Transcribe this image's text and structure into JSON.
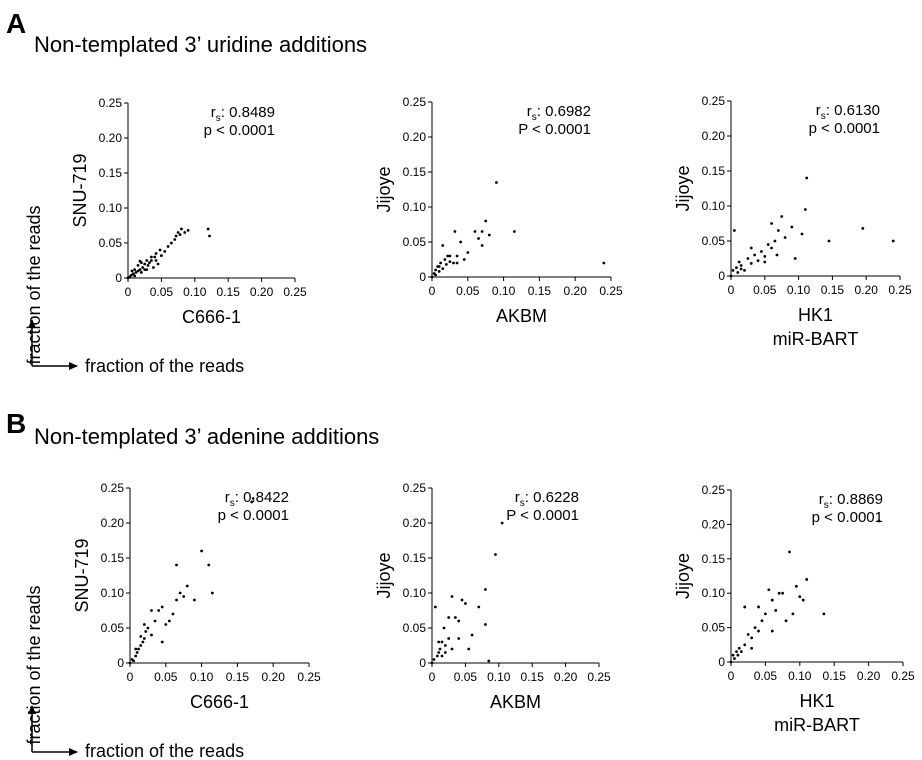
{
  "panels": [
    {
      "letter": "A",
      "title": "Non-templated 3’ uridine additions",
      "side_label": "fraction of the reads",
      "bottom_label": "fraction of the reads"
    },
    {
      "letter": "B",
      "title": "Non-templated 3’ adenine additions",
      "side_label": "fraction of the reads",
      "bottom_label": "fraction of the reads"
    }
  ],
  "chart_data": [
    {
      "type": "scatter",
      "panel": "A",
      "xlabel": "C666-1",
      "xlabel2": "",
      "ylabel": "SNU-719",
      "xlim": [
        0,
        0.25
      ],
      "ylim": [
        0,
        0.25
      ],
      "xticks": [
        "0",
        "0.05",
        "0.10",
        "0.15",
        "0.20",
        "0.25"
      ],
      "yticks": [
        "0",
        "0.05",
        "0.10",
        "0.15",
        "0.20",
        "0.25"
      ],
      "grid": false,
      "marker_color": "#000000",
      "stats": {
        "rs_prefix": "r",
        "rs_sub": "s",
        "rs_value": ": 0.8489",
        "p_text": "p < 0.0001"
      },
      "points": [
        [
          0,
          0
        ],
        [
          0.003,
          0.002
        ],
        [
          0.005,
          0.004
        ],
        [
          0.008,
          0.006
        ],
        [
          0.01,
          0.003
        ],
        [
          0.012,
          0.008
        ],
        [
          0.015,
          0.01
        ],
        [
          0.018,
          0.012
        ],
        [
          0.02,
          0.008
        ],
        [
          0.022,
          0.015
        ],
        [
          0.025,
          0.02
        ],
        [
          0.028,
          0.012
        ],
        [
          0.03,
          0.018
        ],
        [
          0.032,
          0.022
        ],
        [
          0.035,
          0.025
        ],
        [
          0.038,
          0.015
        ],
        [
          0.04,
          0.03
        ],
        [
          0.042,
          0.035
        ],
        [
          0.045,
          0.02
        ],
        [
          0.048,
          0.04
        ],
        [
          0.05,
          0.032
        ],
        [
          0.055,
          0.038
        ],
        [
          0.06,
          0.045
        ],
        [
          0.065,
          0.05
        ],
        [
          0.07,
          0.055
        ],
        [
          0.072,
          0.06
        ],
        [
          0.075,
          0.065
        ],
        [
          0.078,
          0.062
        ],
        [
          0.08,
          0.07
        ],
        [
          0.085,
          0.065
        ],
        [
          0.09,
          0.068
        ],
        [
          0.12,
          0.07
        ],
        [
          0.122,
          0.06
        ],
        [
          0.015,
          0.018
        ],
        [
          0.025,
          0.012
        ],
        [
          0.018,
          0.024
        ],
        [
          0.035,
          0.03
        ],
        [
          0.042,
          0.025
        ],
        [
          0.006,
          0.01
        ],
        [
          0.01,
          0.012
        ],
        [
          0.02,
          0.022
        ],
        [
          0.028,
          0.025
        ]
      ]
    },
    {
      "type": "scatter",
      "panel": "A",
      "xlabel": "AKBM",
      "xlabel2": "",
      "ylabel": "Jijoye",
      "xlim": [
        0,
        0.25
      ],
      "ylim": [
        0,
        0.25
      ],
      "xticks": [
        "0",
        "0.05",
        "0.10",
        "0.15",
        "0.20",
        "0.25"
      ],
      "yticks": [
        "0",
        "0.05",
        "0.10",
        "0.15",
        "0.20",
        "0.25"
      ],
      "grid": false,
      "marker_color": "#000000",
      "stats": {
        "rs_prefix": "r",
        "rs_sub": "s",
        "rs_value": ": 0.6982",
        "p_text": "P < 0.0001"
      },
      "points": [
        [
          0,
          0
        ],
        [
          0.003,
          0.005
        ],
        [
          0.005,
          0.01
        ],
        [
          0.008,
          0.015
        ],
        [
          0.01,
          0.008
        ],
        [
          0.012,
          0.02
        ],
        [
          0.015,
          0.012
        ],
        [
          0.018,
          0.025
        ],
        [
          0.02,
          0.018
        ],
        [
          0.022,
          0.03
        ],
        [
          0.025,
          0.022
        ],
        [
          0.03,
          0.02
        ],
        [
          0.032,
          0.065
        ],
        [
          0.035,
          0.03
        ],
        [
          0.04,
          0.05
        ],
        [
          0.045,
          0.025
        ],
        [
          0.05,
          0.035
        ],
        [
          0.06,
          0.065
        ],
        [
          0.065,
          0.055
        ],
        [
          0.07,
          0.045
        ],
        [
          0.075,
          0.08
        ],
        [
          0.08,
          0.06
        ],
        [
          0.09,
          0.135
        ],
        [
          0.115,
          0.065
        ],
        [
          0.24,
          0.02
        ],
        [
          0.015,
          0.045
        ],
        [
          0.025,
          0.03
        ],
        [
          0.005,
          0.003
        ],
        [
          0.01,
          0.015
        ],
        [
          0.07,
          0.065
        ],
        [
          0.035,
          0.02
        ]
      ]
    },
    {
      "type": "scatter",
      "panel": "A",
      "xlabel": "HK1",
      "xlabel2": "miR-BART",
      "ylabel": "Jijoye",
      "xlim": [
        0,
        0.25
      ],
      "ylim": [
        0,
        0.25
      ],
      "xticks": [
        "0",
        "0.05",
        "0.10",
        "0.15",
        "0.20",
        "0.25"
      ],
      "yticks": [
        "0",
        "0.05",
        "0.10",
        "0.15",
        "0.20",
        "0.25"
      ],
      "grid": false,
      "marker_color": "#000000",
      "stats": {
        "rs_prefix": "r",
        "rs_sub": "s",
        "rs_value": ": 0.6130",
        "p_text": "p < 0.0001"
      },
      "points": [
        [
          0,
          0
        ],
        [
          0.003,
          0.008
        ],
        [
          0.005,
          0.065
        ],
        [
          0.008,
          0.012
        ],
        [
          0.01,
          0.005
        ],
        [
          0.012,
          0.02
        ],
        [
          0.015,
          0.015
        ],
        [
          0.02,
          0.008
        ],
        [
          0.025,
          0.025
        ],
        [
          0.03,
          0.018
        ],
        [
          0.035,
          0.03
        ],
        [
          0.04,
          0.022
        ],
        [
          0.045,
          0.035
        ],
        [
          0.05,
          0.028
        ],
        [
          0.055,
          0.045
        ],
        [
          0.06,
          0.04
        ],
        [
          0.065,
          0.05
        ],
        [
          0.07,
          0.065
        ],
        [
          0.075,
          0.085
        ],
        [
          0.08,
          0.055
        ],
        [
          0.09,
          0.07
        ],
        [
          0.095,
          0.025
        ],
        [
          0.105,
          0.06
        ],
        [
          0.11,
          0.095
        ],
        [
          0.112,
          0.14
        ],
        [
          0.145,
          0.05
        ],
        [
          0.195,
          0.068
        ],
        [
          0.24,
          0.05
        ],
        [
          0.06,
          0.075
        ],
        [
          0.068,
          0.03
        ],
        [
          0.015,
          0.01
        ],
        [
          0.03,
          0.04
        ],
        [
          0.05,
          0.02
        ]
      ]
    },
    {
      "type": "scatter",
      "panel": "B",
      "xlabel": "C666-1",
      "xlabel2": "",
      "ylabel": "SNU-719",
      "xlim": [
        0,
        0.25
      ],
      "ylim": [
        0,
        0.25
      ],
      "xticks": [
        "0",
        "0.05",
        "0.10",
        "0.15",
        "0.20",
        "0.25"
      ],
      "yticks": [
        "0",
        "0.05",
        "0.10",
        "0.15",
        "0.20",
        "0.25"
      ],
      "grid": false,
      "marker_color": "#000000",
      "stats": {
        "rs_prefix": "r",
        "rs_sub": "s",
        "rs_value": ": 0.8422",
        "p_text": "p < 0.0001"
      },
      "points": [
        [
          0,
          0
        ],
        [
          0.003,
          0.005
        ],
        [
          0.005,
          0.003
        ],
        [
          0.008,
          0.01
        ],
        [
          0.01,
          0.015
        ],
        [
          0.012,
          0.02
        ],
        [
          0.015,
          0.025
        ],
        [
          0.018,
          0.03
        ],
        [
          0.02,
          0.035
        ],
        [
          0.022,
          0.045
        ],
        [
          0.025,
          0.05
        ],
        [
          0.03,
          0.04
        ],
        [
          0.035,
          0.06
        ],
        [
          0.04,
          0.075
        ],
        [
          0.045,
          0.08
        ],
        [
          0.05,
          0.055
        ],
        [
          0.055,
          0.06
        ],
        [
          0.06,
          0.07
        ],
        [
          0.065,
          0.09
        ],
        [
          0.07,
          0.1
        ],
        [
          0.075,
          0.095
        ],
        [
          0.08,
          0.11
        ],
        [
          0.09,
          0.09
        ],
        [
          0.1,
          0.16
        ],
        [
          0.11,
          0.14
        ],
        [
          0.115,
          0.1
        ],
        [
          0.17,
          0.23
        ],
        [
          0.172,
          0.235
        ],
        [
          0.065,
          0.14
        ],
        [
          0.03,
          0.075
        ],
        [
          0.045,
          0.03
        ],
        [
          0.02,
          0.055
        ],
        [
          0.015,
          0.038
        ],
        [
          0.008,
          0.02
        ]
      ]
    },
    {
      "type": "scatter",
      "panel": "B",
      "xlabel": "AKBM",
      "xlabel2": "",
      "ylabel": "Jijoye",
      "xlim": [
        0,
        0.25
      ],
      "ylim": [
        0,
        0.25
      ],
      "xticks": [
        "0",
        "0.05",
        "0.10",
        "0.15",
        "0.20",
        "0.25"
      ],
      "yticks": [
        "0",
        "0.05",
        "0.10",
        "0.15",
        "0.20",
        "0.25"
      ],
      "grid": false,
      "marker_color": "#000000",
      "stats": {
        "rs_prefix": "r",
        "rs_sub": "s",
        "rs_value": ": 0.6228",
        "p_text": "P < 0.0001"
      },
      "points": [
        [
          0,
          0
        ],
        [
          0.003,
          0.005
        ],
        [
          0.005,
          0.08
        ],
        [
          0.008,
          0.01
        ],
        [
          0.01,
          0.015
        ],
        [
          0.012,
          0.02
        ],
        [
          0.015,
          0.03
        ],
        [
          0.018,
          0.05
        ],
        [
          0.02,
          0.025
        ],
        [
          0.025,
          0.035
        ],
        [
          0.03,
          0.095
        ],
        [
          0.035,
          0.065
        ],
        [
          0.04,
          0.06
        ],
        [
          0.045,
          0.09
        ],
        [
          0.05,
          0.085
        ],
        [
          0.055,
          0.02
        ],
        [
          0.06,
          0.04
        ],
        [
          0.07,
          0.08
        ],
        [
          0.08,
          0.105
        ],
        [
          0.085,
          0.003
        ],
        [
          0.095,
          0.155
        ],
        [
          0.105,
          0.2
        ],
        [
          0.08,
          0.055
        ],
        [
          0.025,
          0.065
        ],
        [
          0.015,
          0.01
        ],
        [
          0.01,
          0.03
        ],
        [
          0.03,
          0.02
        ],
        [
          0.02,
          0.015
        ],
        [
          0.04,
          0.035
        ]
      ]
    },
    {
      "type": "scatter",
      "panel": "B",
      "xlabel": "HK1",
      "xlabel2": "miR-BART",
      "ylabel": "Jijoye",
      "xlim": [
        0,
        0.25
      ],
      "ylim": [
        0,
        0.25
      ],
      "xticks": [
        "0",
        "0.05",
        "0.10",
        "0.15",
        "0.20",
        "0.25"
      ],
      "yticks": [
        "0",
        "0.05",
        "0.10",
        "0.15",
        "0.20",
        "0.25"
      ],
      "grid": false,
      "marker_color": "#000000",
      "stats": {
        "rs_prefix": "r",
        "rs_sub": "s",
        "rs_value": ": 0.8869",
        "p_text": "p < 0.0001"
      },
      "points": [
        [
          0,
          0
        ],
        [
          0.003,
          0.01
        ],
        [
          0.005,
          0.005
        ],
        [
          0.008,
          0.015
        ],
        [
          0.01,
          0.01
        ],
        [
          0.012,
          0.02
        ],
        [
          0.015,
          0.015
        ],
        [
          0.02,
          0.025
        ],
        [
          0.025,
          0.04
        ],
        [
          0.03,
          0.035
        ],
        [
          0.035,
          0.05
        ],
        [
          0.04,
          0.045
        ],
        [
          0.045,
          0.06
        ],
        [
          0.05,
          0.07
        ],
        [
          0.055,
          0.105
        ],
        [
          0.06,
          0.09
        ],
        [
          0.065,
          0.075
        ],
        [
          0.07,
          0.1
        ],
        [
          0.08,
          0.06
        ],
        [
          0.085,
          0.16
        ],
        [
          0.09,
          0.07
        ],
        [
          0.095,
          0.11
        ],
        [
          0.1,
          0.095
        ],
        [
          0.105,
          0.09
        ],
        [
          0.11,
          0.12
        ],
        [
          0.135,
          0.07
        ],
        [
          0.215,
          0.205
        ],
        [
          0.02,
          0.08
        ],
        [
          0.04,
          0.08
        ],
        [
          0.06,
          0.045
        ],
        [
          0.075,
          0.1
        ],
        [
          0.03,
          0.02
        ]
      ]
    }
  ]
}
